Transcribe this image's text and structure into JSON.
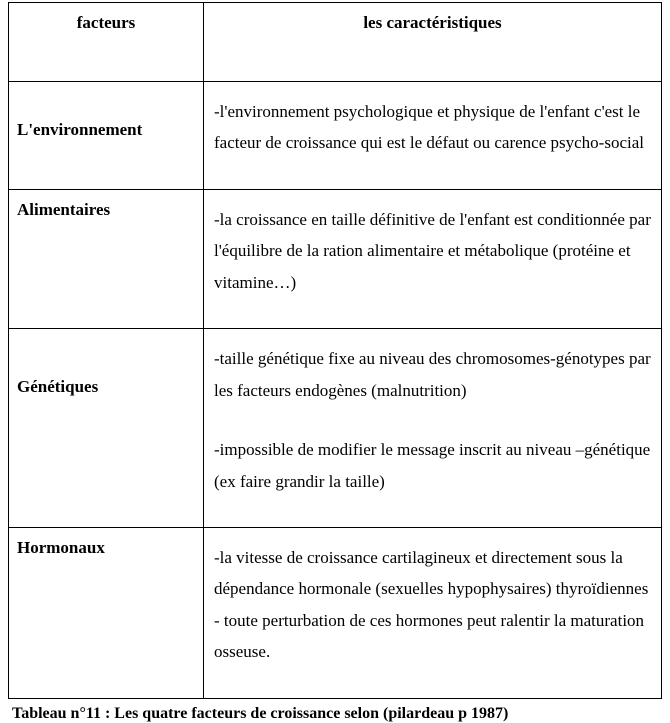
{
  "headers": {
    "col1": "facteurs",
    "col2": "les caractéristiques"
  },
  "rows": [
    {
      "factor": "L'environnement",
      "char_lines": [
        "-l'environnement psychologique et physique de l'enfant c'est le facteur de croissance qui est le défaut ou carence psycho-social"
      ]
    },
    {
      "factor": "Alimentaires",
      "char_lines": [
        "-la croissance en taille définitive de l'enfant est conditionnée par l'équilibre  de la ration alimentaire et métabolique (protéine et vitamine…)"
      ]
    },
    {
      "factor": "Génétiques",
      "char_lines": [
        "-taille génétique fixe au niveau des chromosomes-génotypes par les facteurs endogènes (malnutrition)",
        "",
        "-impossible de modifier le message inscrit au niveau –génétique (ex faire grandir la taille)"
      ]
    },
    {
      "factor": "Hormonaux",
      "char_lines": [
        "-la vitesse de croissance cartilagineux et directement sous la dépendance hormonale (sexuelles hypophysaires) thyroïdiennes",
        "- toute perturbation de ces hormones peut ralentir la maturation osseuse."
      ]
    }
  ],
  "caption": "Tableau n°11   : Les quatre facteurs de croissance selon (pilardeau p 1987)"
}
